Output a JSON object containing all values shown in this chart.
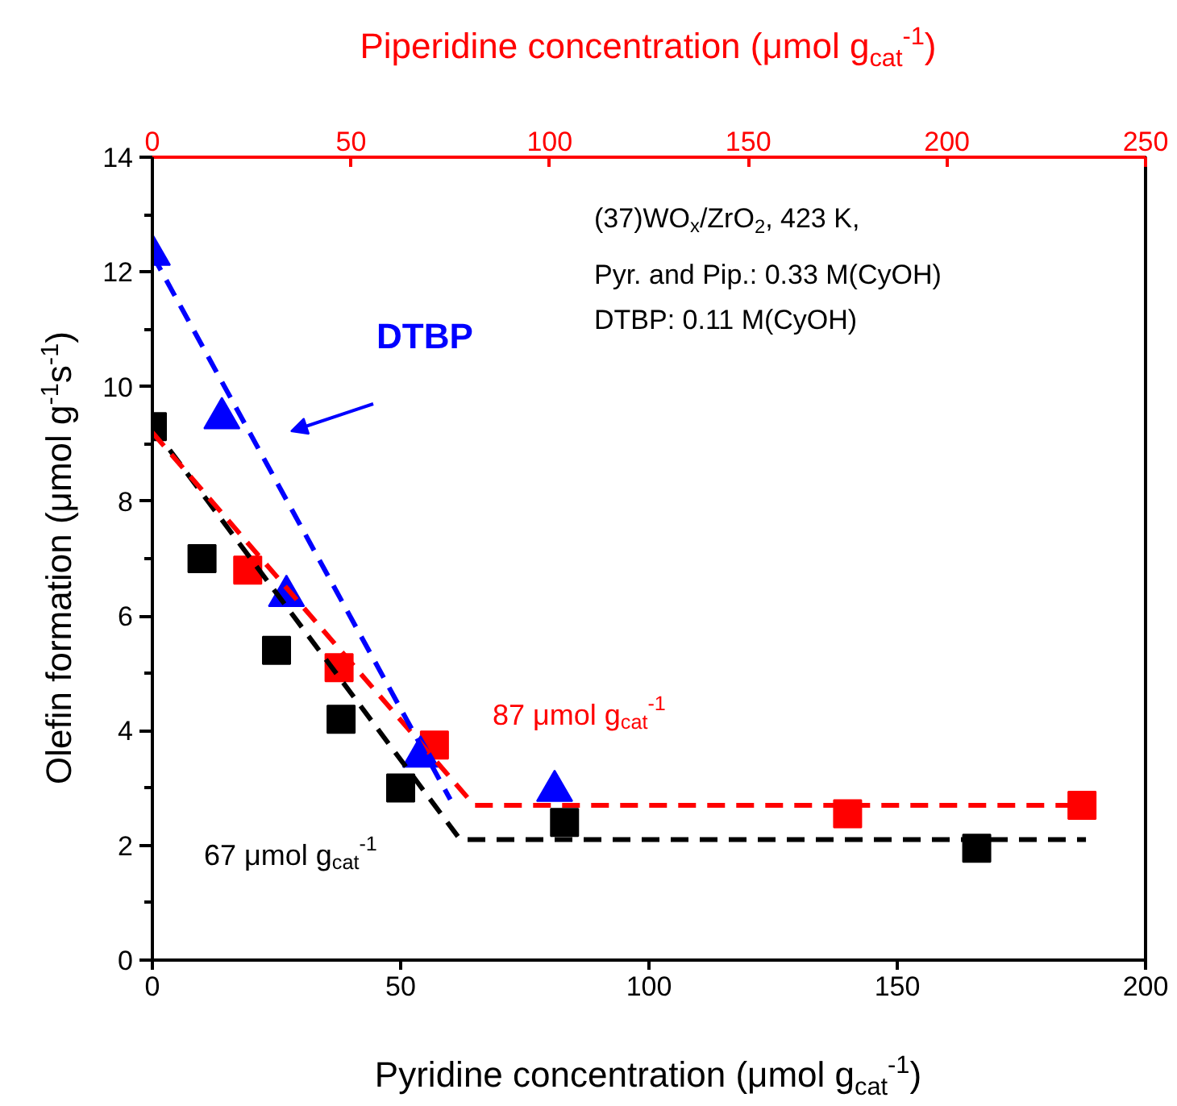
{
  "chart_data": {
    "type": "scatter",
    "xlabel": "Pyridine concentration (μmol g$_{cat}$$^{-1}$)",
    "x2label": "Piperidine concentration (μmol g$_{cat}$$^{-1}$)",
    "ylabel": "Olefin formation (μmol g$^{-1}$s$^{-1}$)",
    "xlim": [
      0,
      200
    ],
    "xticks": [
      0,
      50,
      100,
      150,
      200
    ],
    "x2lim": [
      0,
      250
    ],
    "x2ticks": [
      0,
      50,
      100,
      150,
      200,
      250
    ],
    "ylim": [
      0,
      14
    ],
    "yticks": [
      0,
      {
        "value": 1,
        "label": null
      },
      2,
      {
        "value": 3,
        "label": null
      },
      4,
      {
        "value": 5,
        "label": null
      },
      6,
      {
        "value": 7,
        "label": null
      },
      8,
      {
        "value": 9,
        "label": null
      },
      10,
      {
        "value": 11,
        "label": null
      },
      12,
      {
        "value": 13,
        "label": null
      },
      14
    ],
    "grid": false,
    "series": [
      {
        "type": "scatter",
        "marker": "square",
        "color": "#000000",
        "x": [
          0,
          10,
          25,
          38,
          50,
          83,
          166
        ],
        "values": [
          9.3,
          7.0,
          5.4,
          4.2,
          3.0,
          2.4,
          1.95
        ]
      },
      {
        "type": "scatter",
        "marker": "square",
        "color": "#ff0000",
        "axis": "x2",
        "x": [
          24,
          47,
          71,
          175,
          234
        ],
        "values": [
          6.8,
          5.1,
          3.75,
          2.55,
          2.7
        ]
      },
      {
        "type": "scatter",
        "marker": "triangle",
        "color": "#0000ff",
        "x": [
          0,
          14,
          27,
          54,
          81
        ],
        "values": [
          12.3,
          9.45,
          6.35,
          3.55,
          2.95
        ]
      },
      {
        "type": "line",
        "marker": "none",
        "line_style": "dashed",
        "color": "#000000",
        "x": [
          0,
          62,
          188
        ],
        "values": [
          9.3,
          2.1,
          2.1
        ]
      },
      {
        "type": "line",
        "marker": "none",
        "line_style": "dashed",
        "color": "#ff0000",
        "axis": "x2",
        "x": [
          0,
          81,
          235
        ],
        "values": [
          9.2,
          2.7,
          2.7
        ]
      },
      {
        "type": "line",
        "marker": "none",
        "line_style": "dashed",
        "color": "#0000ff",
        "x": [
          0,
          60
        ],
        "values": [
          12.3,
          2.8
        ]
      }
    ],
    "annotations": [
      "DTBP",
      "87 μmol g$_{cat}$$^{-1}$",
      "67 μmol g$_{cat}$$^{-1}$",
      "(37)WO$_{x}$/ZrO$_{2}$, 423 K,",
      "Pyr. and Pip.: 0.33 M(CyOH)",
      "DTBP: 0.11 M(CyOH)"
    ]
  }
}
